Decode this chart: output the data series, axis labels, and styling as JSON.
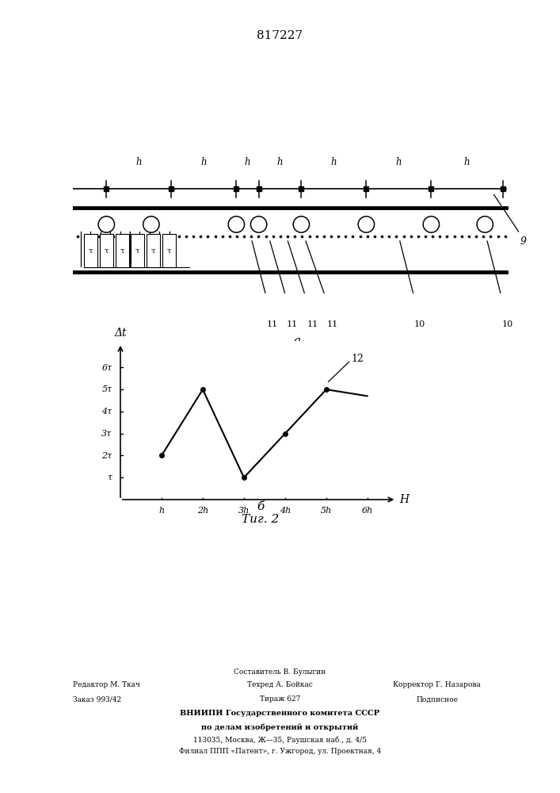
{
  "title": "817227",
  "bg_color": "#ffffff",
  "graph_x": [
    1,
    2,
    3,
    4,
    5,
    6
  ],
  "graph_y": [
    2,
    5,
    1,
    3,
    5,
    4.7
  ],
  "x_ticks": [
    "h",
    "2h",
    "3h",
    "4h",
    "5h",
    "6h"
  ],
  "y_ticks": [
    "τ",
    "2τ",
    "3τ",
    "4τ",
    "5τ",
    "6τ"
  ],
  "y_tick_vals": [
    1,
    2,
    3,
    4,
    5,
    6
  ],
  "x_label": "H",
  "y_label": "Δt",
  "footer_line1_left": "Редактор М. Ткач",
  "footer_line2_left": "Заказ 993/42",
  "footer_line1_center": "Составитель В. Булыгин",
  "footer_line2_center": "Техред А. Бойкас",
  "footer_line3_center": "Тираж 627",
  "footer_line1_right": "Корректор Г. Назарова",
  "footer_line2_right": "Подписное",
  "footer_bold1": "ВНИИПИ Государственного комитета СССР",
  "footer_bold2": "по делам изобретений и открытий",
  "footer3": "113035, Москва, Ж—35, Раушская наб., д. 4/5",
  "footer4": "Филиал ППП «Патент», г. Ужгород, ул. Проектная, 4"
}
